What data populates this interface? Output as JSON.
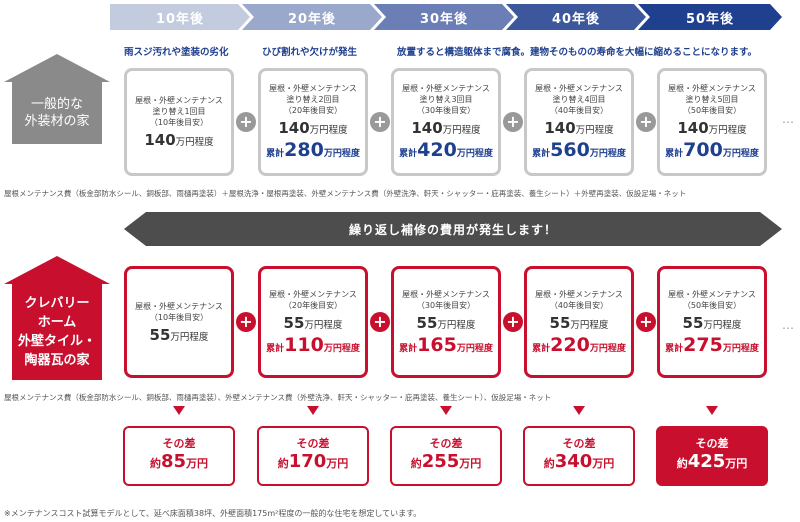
{
  "timeline": [
    "10年後",
    "20年後",
    "30年後",
    "40年後",
    "50年後"
  ],
  "colors": {
    "timeline": [
      "#c3ccdf",
      "#9aa8cb",
      "#6b7fb6",
      "#3d579c",
      "#1f3f8f"
    ],
    "accent_red": "#c8102e",
    "accent_blue": "#1f3f8f"
  },
  "general": {
    "label_lines": [
      "一般的な",
      "外装材の家"
    ],
    "issues": [
      "雨スジ汚れや塗装の劣化",
      "ひび割れや欠けが発生",
      "放置すると構造躯体まで腐食。建物そのものの寿命を大幅に縮めることになります。"
    ],
    "cards": [
      {
        "desc": [
          "屋根・外壁メンテナンス",
          "塗り替え1回目",
          "（10年後目安）"
        ],
        "price": "140",
        "unit": "万円程度",
        "cum_prefix": "",
        "cum": "",
        "cum_unit": ""
      },
      {
        "desc": [
          "屋根・外壁メンテナンス",
          "塗り替え2回目",
          "（20年後目安）"
        ],
        "price": "140",
        "unit": "万円程度",
        "cum_prefix": "累計",
        "cum": "280",
        "cum_unit": "万円程度"
      },
      {
        "desc": [
          "屋根・外壁メンテナンス",
          "塗り替え3回目",
          "（30年後目安）"
        ],
        "price": "140",
        "unit": "万円程度",
        "cum_prefix": "累計",
        "cum": "420",
        "cum_unit": "万円程度"
      },
      {
        "desc": [
          "屋根・外壁メンテナンス",
          "塗り替え4回目",
          "（40年後目安）"
        ],
        "price": "140",
        "unit": "万円程度",
        "cum_prefix": "累計",
        "cum": "560",
        "cum_unit": "万円程度"
      },
      {
        "desc": [
          "屋根・外壁メンテナンス",
          "塗り替え5回目",
          "（50年後目安）"
        ],
        "price": "140",
        "unit": "万円程度",
        "cum_prefix": "累計",
        "cum": "700",
        "cum_unit": "万円程度"
      }
    ],
    "note": "屋根メンテナンス費（板金部防水シール、銅板部、雨樋再塗装）＋屋根洗浄・屋根再塗装、外壁メンテナンス費（外壁洗浄、軒天・シャッター・庇再塗装、養生シート）＋外壁再塗装、仮設足場・ネット"
  },
  "banner": "繰り返し補修の費用が発生します！",
  "clevery": {
    "label_lines": [
      "クレバリー",
      "ホーム",
      "外壁タイル・",
      "陶器瓦の家"
    ],
    "cards": [
      {
        "desc": [
          "屋根・外壁メンテナンス",
          "（10年後目安）"
        ],
        "price": "55",
        "unit": "万円程度",
        "cum_prefix": "",
        "cum": "",
        "cum_unit": ""
      },
      {
        "desc": [
          "屋根・外壁メンテナンス",
          "（20年後目安）"
        ],
        "price": "55",
        "unit": "万円程度",
        "cum_prefix": "累計",
        "cum": "110",
        "cum_unit": "万円程度"
      },
      {
        "desc": [
          "屋根・外壁メンテナンス",
          "（30年後目安）"
        ],
        "price": "55",
        "unit": "万円程度",
        "cum_prefix": "累計",
        "cum": "165",
        "cum_unit": "万円程度"
      },
      {
        "desc": [
          "屋根・外壁メンテナンス",
          "（40年後目安）"
        ],
        "price": "55",
        "unit": "万円程度",
        "cum_prefix": "累計",
        "cum": "220",
        "cum_unit": "万円程度"
      },
      {
        "desc": [
          "屋根・外壁メンテナンス",
          "（50年後目安）"
        ],
        "price": "55",
        "unit": "万円程度",
        "cum_prefix": "累計",
        "cum": "275",
        "cum_unit": "万円程度"
      }
    ],
    "note": "屋根メンテナンス費（板金部防水シール、銅板部、雨樋再塗装）、外壁メンテナンス費（外壁洗浄、軒天・シャッター・庇再塗装、養生シート）、仮設足場・ネット"
  },
  "diffs": {
    "title": "その差",
    "prefix": "約",
    "unit": "万円",
    "values": [
      "85",
      "170",
      "255",
      "340",
      "425"
    ]
  },
  "footnote": "※メンテナンスコスト試算モデルとして、延べ床面積38坪、外壁面積175m²程度の一般的な住宅を想定しています。",
  "ellipsis": "…"
}
